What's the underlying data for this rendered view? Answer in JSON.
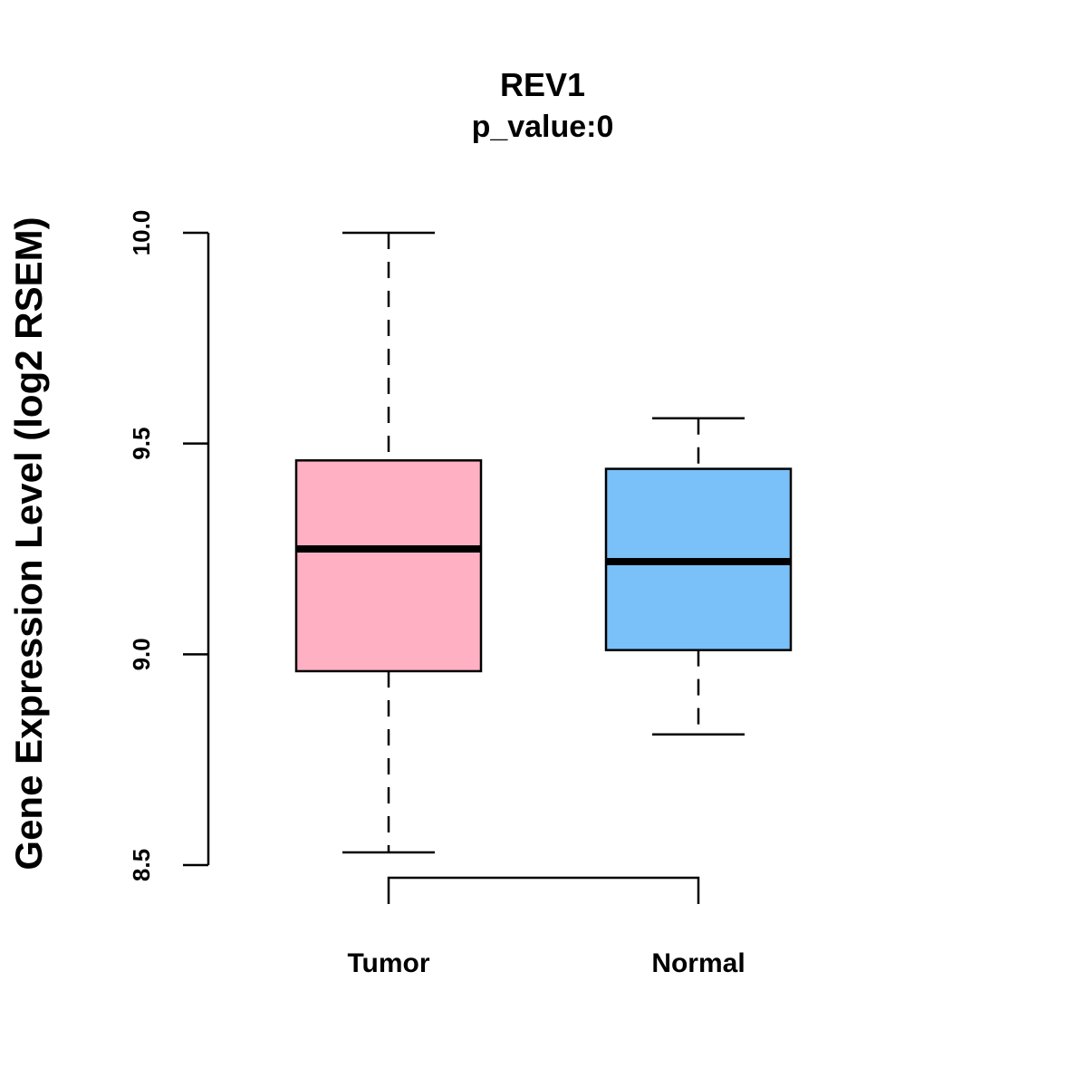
{
  "chart_data": {
    "type": "box",
    "title": "REV1",
    "subtitle": "p_value:0",
    "xlabel": "",
    "ylabel": "Gene Expression Level (log2 RSEM)",
    "ylim": [
      8.5,
      10.0
    ],
    "yticks": [
      "8.5",
      "9.0",
      "9.5",
      "10.0"
    ],
    "grid": false,
    "categories": [
      "Tumor",
      "Normal"
    ],
    "boxes": [
      {
        "name": "Tumor",
        "color": "#FFB0C3",
        "whisker_low": 8.53,
        "q1": 8.96,
        "median": 9.25,
        "q3": 9.46,
        "whisker_high": 10.0
      },
      {
        "name": "Normal",
        "color": "#79C1F8",
        "whisker_low": 8.81,
        "q1": 9.01,
        "median": 9.22,
        "q3": 9.44,
        "whisker_high": 9.56
      }
    ],
    "significance_bracket": {
      "between": [
        "Tumor",
        "Normal"
      ]
    }
  }
}
